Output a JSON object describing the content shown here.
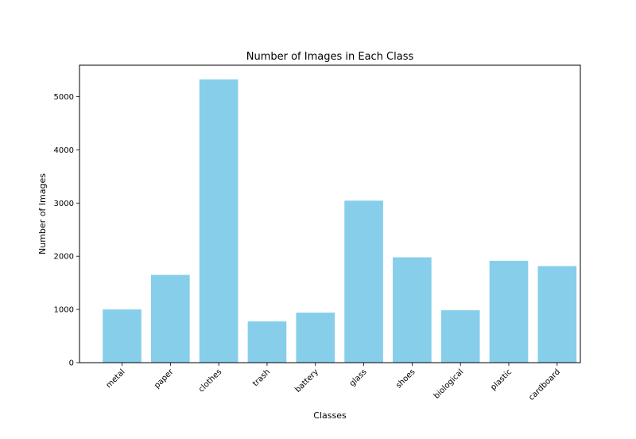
{
  "chart_data": {
    "type": "bar",
    "title": "Number of Images in Each Class",
    "xlabel": "Classes",
    "ylabel": "Number of Images",
    "categories": [
      "metal",
      "paper",
      "clothes",
      "trash",
      "battery",
      "glass",
      "shoes",
      "biological",
      "plastic",
      "cardboard"
    ],
    "values": [
      1000,
      1650,
      5325,
      775,
      940,
      3045,
      1980,
      985,
      1915,
      1815
    ],
    "ylim": [
      0,
      5591
    ],
    "yticks": [
      0,
      1000,
      2000,
      3000,
      4000,
      5000
    ],
    "ytick_labels": [
      "0",
      "1000",
      "2000",
      "3000",
      "4000",
      "5000"
    ],
    "bar_color": "#87CEEB",
    "grid": false,
    "legend": "none"
  }
}
